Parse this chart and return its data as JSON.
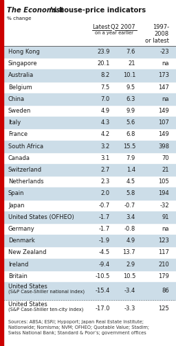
{
  "title_italic": "The Economist",
  "title_rest": "’s house-price indicators",
  "subtitle": "% change",
  "rows": [
    {
      "country": "Hong Kong",
      "latest": "23.9",
      "q2_2007": "7.6",
      "since97": "-23",
      "shade": true,
      "two_line": false,
      "dotted_top": false
    },
    {
      "country": "Singapore",
      "latest": "20.1",
      "q2_2007": "21",
      "since97": "na",
      "shade": false,
      "two_line": false,
      "dotted_top": false
    },
    {
      "country": "Australia",
      "latest": "8.2",
      "q2_2007": "10.1",
      "since97": "173",
      "shade": true,
      "two_line": false,
      "dotted_top": false
    },
    {
      "country": "Belgium",
      "latest": "7.5",
      "q2_2007": "9.5",
      "since97": "147",
      "shade": false,
      "two_line": false,
      "dotted_top": false
    },
    {
      "country": "China",
      "latest": "7.0",
      "q2_2007": "6.3",
      "since97": "na",
      "shade": true,
      "two_line": false,
      "dotted_top": false
    },
    {
      "country": "Sweden",
      "latest": "4.9",
      "q2_2007": "9.9",
      "since97": "149",
      "shade": false,
      "two_line": false,
      "dotted_top": false
    },
    {
      "country": "Italy",
      "latest": "4.3",
      "q2_2007": "5.6",
      "since97": "107",
      "shade": true,
      "two_line": false,
      "dotted_top": false
    },
    {
      "country": "France",
      "latest": "4.2",
      "q2_2007": "6.8",
      "since97": "149",
      "shade": false,
      "two_line": false,
      "dotted_top": false
    },
    {
      "country": "South Africa",
      "latest": "3.2",
      "q2_2007": "15.5",
      "since97": "398",
      "shade": true,
      "two_line": false,
      "dotted_top": false
    },
    {
      "country": "Canada",
      "latest": "3.1",
      "q2_2007": "7.9",
      "since97": "70",
      "shade": false,
      "two_line": false,
      "dotted_top": false
    },
    {
      "country": "Switzerland",
      "latest": "2.7",
      "q2_2007": "1.4",
      "since97": "21",
      "shade": true,
      "two_line": false,
      "dotted_top": false
    },
    {
      "country": "Netherlands",
      "latest": "2.3",
      "q2_2007": "4.5",
      "since97": "105",
      "shade": false,
      "two_line": false,
      "dotted_top": false
    },
    {
      "country": "Spain",
      "latest": "2.0",
      "q2_2007": "5.8",
      "since97": "194",
      "shade": true,
      "two_line": false,
      "dotted_top": false
    },
    {
      "country": "Japan",
      "latest": "-0.7",
      "q2_2007": "-0.7",
      "since97": "-32",
      "shade": false,
      "two_line": false,
      "dotted_top": false
    },
    {
      "country": "United States (OFHEO)",
      "latest": "-1.7",
      "q2_2007": "3.4",
      "since97": "91",
      "shade": true,
      "two_line": false,
      "dotted_top": false
    },
    {
      "country": "Germany",
      "latest": "-1.7",
      "q2_2007": "-0.8",
      "since97": "na",
      "shade": false,
      "two_line": false,
      "dotted_top": false
    },
    {
      "country": "Denmark",
      "latest": "-1.9",
      "q2_2007": "4.9",
      "since97": "123",
      "shade": true,
      "two_line": false,
      "dotted_top": false
    },
    {
      "country": "New Zealand",
      "latest": "-4.5",
      "q2_2007": "13.7",
      "since97": "117",
      "shade": false,
      "two_line": false,
      "dotted_top": false
    },
    {
      "country": "Ireland",
      "latest": "-9.4",
      "q2_2007": "2.9",
      "since97": "210",
      "shade": true,
      "two_line": false,
      "dotted_top": false
    },
    {
      "country": "Britain",
      "latest": "-10.5",
      "q2_2007": "10.5",
      "since97": "179",
      "shade": false,
      "two_line": false,
      "dotted_top": false
    },
    {
      "country": "United States",
      "latest": "-15.4",
      "q2_2007": "-3.4",
      "since97": "86",
      "shade": true,
      "two_line": true,
      "sub": "(S&P Case-Shiller national index)",
      "dotted_top": false
    },
    {
      "country": "United States",
      "latest": "-17.0",
      "q2_2007": "-3.3",
      "since97": "125",
      "shade": false,
      "two_line": true,
      "sub": "(S&P Case-Shiller ten-city index)",
      "dotted_top": true
    }
  ],
  "footer": "Sources: ABSA; ESRI; Hypoport; Japan Real Estate Institute;\nNationwide; Nomisma; NVM; OFHEO; Quotable Value; Stadim;\nSwiss National Bank; Standard & Poor’s; government offices",
  "bg_color": "#ffffff",
  "shade_color": "#ccdde8",
  "red_color": "#cc0000",
  "text_color": "#1a1a1a"
}
